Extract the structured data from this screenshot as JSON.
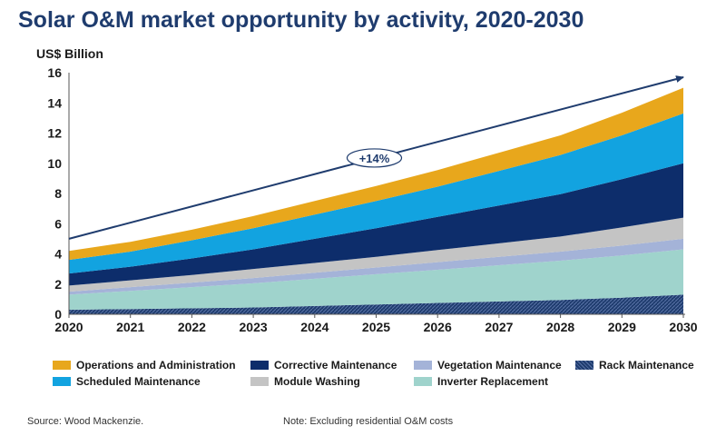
{
  "header": {
    "title": "Solar O&M market opportunity by activity, 2020-2030"
  },
  "chart_data": {
    "type": "area",
    "stacked": true,
    "ylabel": "US$ Billion",
    "ylim": [
      0,
      16
    ],
    "yticks": [
      "0",
      "2",
      "4",
      "6",
      "8",
      "10",
      "12",
      "14",
      "16"
    ],
    "x": [
      "2020",
      "2021",
      "2022",
      "2023",
      "2024",
      "2025",
      "2026",
      "2027",
      "2028",
      "2029",
      "2030"
    ],
    "series": [
      {
        "name": "Rack Maintenance",
        "color": "#1f3c6e",
        "values": [
          0.3,
          0.35,
          0.4,
          0.45,
          0.55,
          0.65,
          0.75,
          0.85,
          0.95,
          1.1,
          1.3
        ]
      },
      {
        "name": "Inverter Replacement",
        "color": "#9fd3cc",
        "values": [
          1.0,
          1.2,
          1.4,
          1.6,
          1.8,
          2.0,
          2.2,
          2.4,
          2.6,
          2.8,
          3.0
        ]
      },
      {
        "name": "Vegetation Maintenance",
        "color": "#a4b3d8",
        "values": [
          0.2,
          0.25,
          0.3,
          0.35,
          0.4,
          0.45,
          0.5,
          0.55,
          0.6,
          0.65,
          0.7
        ]
      },
      {
        "name": "Module Washing",
        "color": "#c4c4c4",
        "values": [
          0.4,
          0.45,
          0.5,
          0.6,
          0.65,
          0.7,
          0.8,
          0.9,
          1.0,
          1.2,
          1.4
        ]
      },
      {
        "name": "Corrective Maintenance",
        "color": "#0d2d6b",
        "values": [
          0.8,
          0.9,
          1.1,
          1.3,
          1.6,
          1.9,
          2.2,
          2.5,
          2.8,
          3.2,
          3.6
        ]
      },
      {
        "name": "Scheduled Maintenance",
        "color": "#12a3e0",
        "values": [
          0.9,
          1.0,
          1.2,
          1.4,
          1.6,
          1.8,
          2.0,
          2.3,
          2.6,
          2.9,
          3.3
        ]
      },
      {
        "name": "Operations and Administration",
        "color": "#e8a71c",
        "values": [
          0.6,
          0.65,
          0.7,
          0.8,
          0.9,
          1.0,
          1.1,
          1.2,
          1.3,
          1.5,
          1.7
        ]
      }
    ],
    "trend_line": {
      "start": [
        2020,
        5.0
      ],
      "end": [
        2030,
        15.7
      ],
      "label": "+14%",
      "color": "#1f3c6e"
    },
    "legend_order": [
      "Operations and Administration",
      "Corrective Maintenance",
      "Vegetation Maintenance",
      "Rack Maintenance",
      "Scheduled Maintenance",
      "Module Washing",
      "Inverter Replacement"
    ],
    "grid": false,
    "legend_placement": "bottom"
  },
  "footer": {
    "source": "Source: Wood Mackenzie.",
    "note": "Note: Excluding residential O&M costs"
  }
}
